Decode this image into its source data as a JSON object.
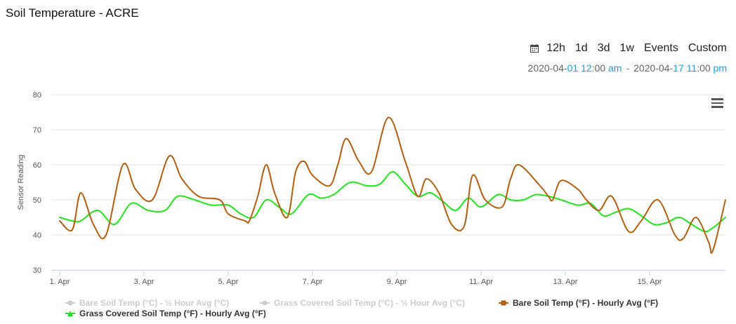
{
  "title": "Soil Temperature - ACRE",
  "range_buttons": [
    "12h",
    "1d",
    "3d",
    "1w",
    "Events",
    "Custom"
  ],
  "date_range": {
    "start": {
      "prefix": "2020-04-",
      "day": "01",
      "hour": "12",
      "mins": ":00",
      "ampm": "am"
    },
    "separator": "-",
    "end": {
      "prefix": "2020-04-",
      "day": "17",
      "hour": "11",
      "mins": ":00",
      "ampm": "pm"
    }
  },
  "colors": {
    "brown": "#b35f0f",
    "green": "#22e41c",
    "disabled": "#cccccc",
    "link": "#1a9fdc"
  },
  "chart_data": {
    "type": "line",
    "ylabel": "Sensor Reading",
    "ylim": [
      30,
      80
    ],
    "yticks": [
      30,
      40,
      50,
      60,
      70,
      80
    ],
    "xlim": [
      0.8,
      16.8
    ],
    "xticks": [
      {
        "v": 1,
        "label": "1. Apr"
      },
      {
        "v": 3,
        "label": "3. Apr"
      },
      {
        "v": 5,
        "label": "5. Apr"
      },
      {
        "v": 7,
        "label": "7. Apr"
      },
      {
        "v": 9,
        "label": "9. Apr"
      },
      {
        "v": 11,
        "label": "11. Apr"
      },
      {
        "v": 13,
        "label": "13. Apr"
      },
      {
        "v": 15,
        "label": "15. Apr"
      }
    ],
    "legend": [
      {
        "name": "Bare Soil Temp (°C) - ½ Hour Avg (°C)",
        "visible": false,
        "marker": "circle"
      },
      {
        "name": "Grass Covered Soil Temp (°C) - ½ Hour Avg (°C)",
        "visible": false,
        "marker": "circle"
      },
      {
        "name": "Bare Soil Temp (°F) - Hourly Avg (°F)",
        "visible": true,
        "marker": "square"
      },
      {
        "name": "Grass Covered Soil Temp (°F) - Hourly Avg (°F)",
        "visible": true,
        "marker": "triangle"
      }
    ],
    "series": [
      {
        "name": "Bare Soil Temp (°F) - Hourly Avg (°F)",
        "color": "#b35f0f",
        "x": [
          1.0,
          1.3,
          1.5,
          1.8,
          2.1,
          2.5,
          2.8,
          3.2,
          3.6,
          3.9,
          4.3,
          4.8,
          5.0,
          5.4,
          5.5,
          5.7,
          5.9,
          6.1,
          6.4,
          6.6,
          6.8,
          7.0,
          7.4,
          7.6,
          7.8,
          8.1,
          8.4,
          8.8,
          9.2,
          9.5,
          9.7,
          10.0,
          10.3,
          10.6,
          10.8,
          11.1,
          11.5,
          11.7,
          11.9,
          12.4,
          12.6,
          12.7,
          12.9,
          13.3,
          13.5,
          13.8,
          14.1,
          14.5,
          14.8,
          15.2,
          15.6,
          15.8,
          16.1,
          16.4,
          16.5,
          16.8
        ],
        "y": [
          44,
          41.5,
          52,
          43,
          40,
          60,
          53,
          50,
          62.5,
          56,
          51,
          50,
          46,
          44,
          44,
          51,
          60,
          52,
          45,
          58,
          61,
          57,
          54,
          60,
          67.5,
          61,
          58,
          73.5,
          61,
          51,
          56,
          52,
          43,
          42.5,
          57,
          50,
          48,
          56,
          60,
          54,
          51,
          50,
          55.5,
          53,
          50,
          47,
          51,
          41,
          44,
          50,
          40,
          39,
          45,
          38,
          35.5,
          50
        ]
      },
      {
        "name": "Grass Covered Soil Temp (°F) - Hourly Avg (°F)",
        "color": "#22e41c",
        "x": [
          1.0,
          1.3,
          1.5,
          1.9,
          2.3,
          2.7,
          3.1,
          3.5,
          3.8,
          4.2,
          4.6,
          5.0,
          5.3,
          5.6,
          5.9,
          6.2,
          6.5,
          6.9,
          7.2,
          7.5,
          7.9,
          8.3,
          8.6,
          8.9,
          9.2,
          9.5,
          9.8,
          10.1,
          10.4,
          10.7,
          11.0,
          11.4,
          11.7,
          12.0,
          12.3,
          12.6,
          12.9,
          13.3,
          13.6,
          13.9,
          14.2,
          14.5,
          14.8,
          15.1,
          15.4,
          15.7,
          16.0,
          16.3,
          16.5,
          16.8
        ],
        "y": [
          45,
          44,
          44,
          47,
          43,
          49,
          47,
          47,
          51,
          50,
          48.5,
          48.5,
          46,
          45,
          50,
          48,
          46,
          51.5,
          50.5,
          51.5,
          55,
          54,
          54.5,
          58,
          54.5,
          51,
          52,
          49.5,
          47,
          50.5,
          48,
          51.5,
          50,
          50,
          51.5,
          51,
          50,
          48.5,
          49,
          45.5,
          46.5,
          47.5,
          45.5,
          43,
          43.5,
          45,
          43,
          41,
          42,
          45
        ]
      }
    ]
  }
}
